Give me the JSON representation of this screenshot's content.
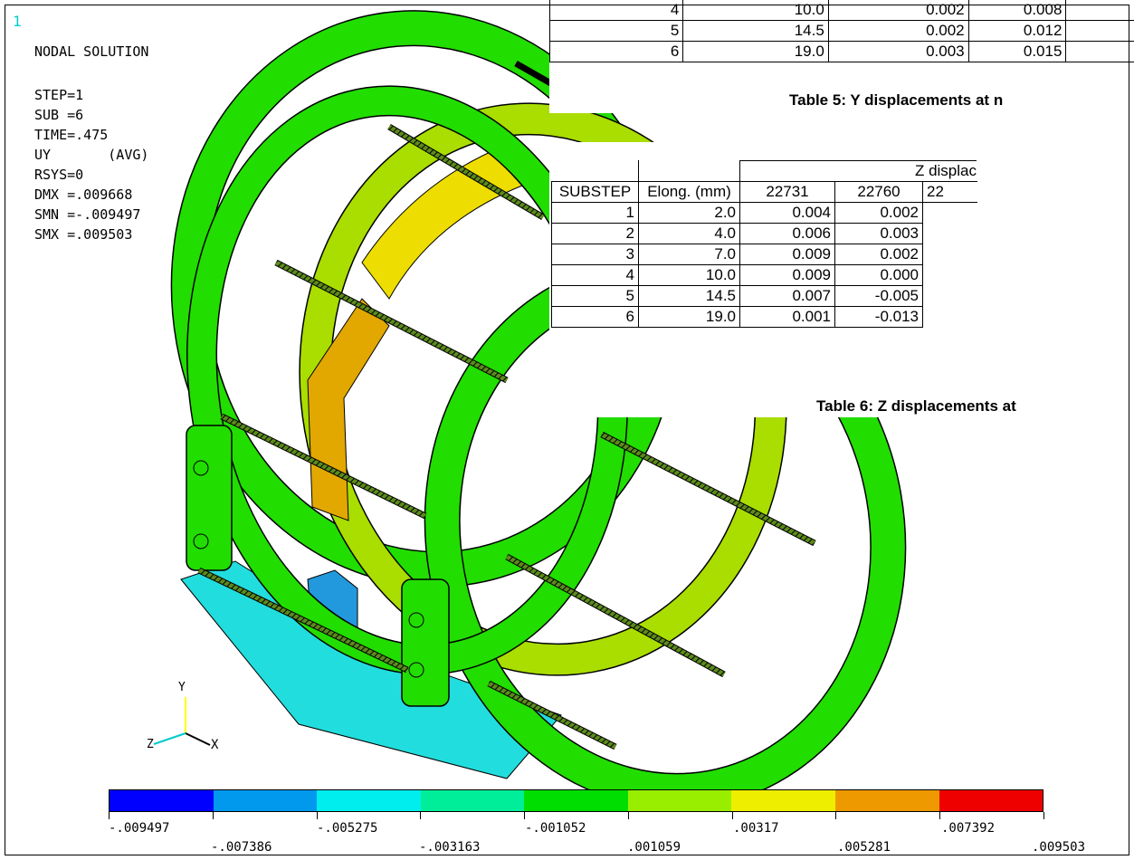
{
  "window_number": "1",
  "info": {
    "title": "NODAL SOLUTION",
    "lines": [
      "STEP=1",
      "SUB =6",
      "TIME=.475",
      "UY       (AVG)",
      "RSYS=0",
      "DMX =.009668",
      "SMN =-.009497",
      "SMX =.009503"
    ]
  },
  "table5": {
    "rows": [
      [
        "4",
        "10.0",
        "0.002",
        "0.008",
        ""
      ],
      [
        "5",
        "14.5",
        "0.002",
        "0.012",
        ""
      ],
      [
        "6",
        "19.0",
        "0.003",
        "0.015",
        ""
      ]
    ],
    "caption": "Table 5: Y displacements at n"
  },
  "table6": {
    "group_header": "Z displac",
    "headers": [
      "SUBSTEP",
      "Elong. (mm)",
      "22731",
      "22760",
      "22"
    ],
    "rows": [
      [
        "1",
        "2.0",
        "0.004",
        "0.002",
        ""
      ],
      [
        "2",
        "4.0",
        "0.006",
        "0.003",
        ""
      ],
      [
        "3",
        "7.0",
        "0.009",
        "0.002",
        ""
      ],
      [
        "4",
        "10.0",
        "0.009",
        "0.000",
        ""
      ],
      [
        "5",
        "14.5",
        "0.007",
        "-0.005",
        ""
      ],
      [
        "6",
        "19.0",
        "0.001",
        "-0.013",
        ""
      ]
    ],
    "caption": "Table 6: Z displacements at"
  },
  "triad": {
    "x": "X",
    "y": "Y",
    "z": "Z"
  },
  "legend": {
    "colors": [
      "#0000ff",
      "#0099ee",
      "#00eeee",
      "#00ee99",
      "#00dd00",
      "#99ee00",
      "#eeee00",
      "#ee9900",
      "#ee0000"
    ],
    "labels_top": [
      "-.009497",
      "-.005275",
      "-.001052",
      ".00317",
      ".007392"
    ],
    "labels_bottom": [
      "-.007386",
      "-.003163",
      ".001059",
      ".005281",
      ".009503"
    ]
  },
  "colors": {
    "green": "#22dd00",
    "yellow_green": "#aadd00",
    "yellow": "#eedd00",
    "orange": "#e2a800",
    "blue": "#2299dd",
    "cyan": "#22dddd"
  }
}
